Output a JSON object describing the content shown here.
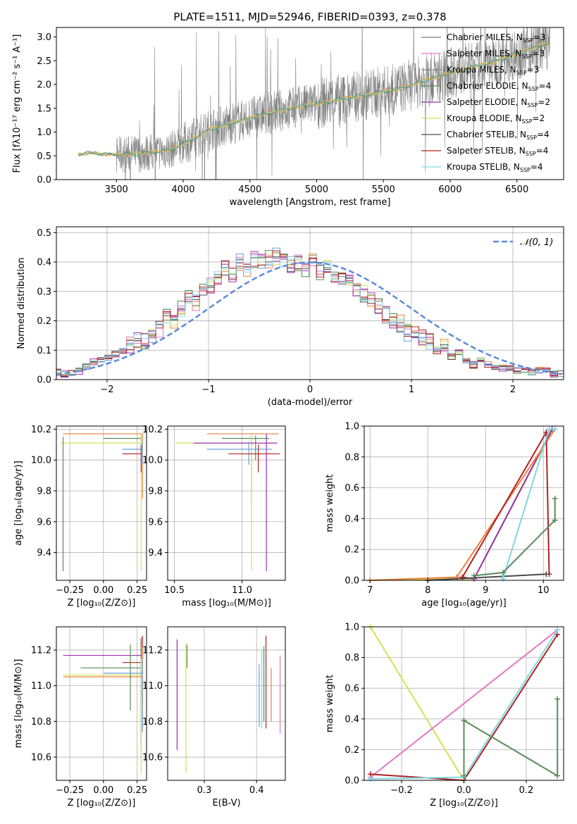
{
  "colors": {
    "c0": "#7a7a7a",
    "c1": "#e377c2",
    "c2": "#8b8b8b",
    "c3": "#5a8a5a",
    "c4": "#9b30b0",
    "c5": "#d4e157",
    "c6": "#4a4a4a",
    "c7": "#b22222",
    "c8": "#80d8e0",
    "orange": "#ef7f3a",
    "blue": "#6f9fd8",
    "dashed": "#5b8bd8"
  },
  "chart_data": [
    {
      "id": "spectrum",
      "type": "line",
      "title": "PLATE=1511, MJD=52946, FIBERID=0393, z=0.378",
      "xlabel": "wavelength [Angstrom, rest frame]",
      "ylabel": "Flux [fλ10⁻¹⁷ erg cm⁻² s⁻¹ A⁻¹]",
      "xlim": [
        3050,
        6850
      ],
      "ylim": [
        0,
        3.2
      ],
      "xticks": [
        "3500",
        "4000",
        "4500",
        "5000",
        "5500",
        "6000",
        "6500"
      ],
      "yticks": [
        "0.0",
        "0.5",
        "1.0",
        "1.5",
        "2.0",
        "2.5",
        "3.0"
      ],
      "legend": [
        {
          "label": "Chabrier MILES, N",
          "sub": "SSP",
          "tail": "=3",
          "color": "c0"
        },
        {
          "label": "Salpeter MILES, N",
          "sub": "SSP",
          "tail": "=3",
          "color": "c1"
        },
        {
          "label": "Kroupa MILES, N",
          "sub": "SSP",
          "tail": "=3",
          "color": "c2"
        },
        {
          "label": "Chabrier ELODIE, N",
          "sub": "SSP",
          "tail": "=4",
          "color": "c3"
        },
        {
          "label": "Salpeter ELODIE, N",
          "sub": "SSP",
          "tail": "=2",
          "color": "c4"
        },
        {
          "label": "Kroupa ELODIE, N",
          "sub": "SSP",
          "tail": "=2",
          "color": "c5"
        },
        {
          "label": "Chabrier STELIB, N",
          "sub": "SSP",
          "tail": "=4",
          "color": "c6"
        },
        {
          "label": "Salpeter STELIB, N",
          "sub": "SSP",
          "tail": "=4",
          "color": "c7"
        },
        {
          "label": "Kroupa STELIB, N",
          "sub": "SSP",
          "tail": "=4",
          "color": "c8"
        }
      ],
      "legend_position": "top-right",
      "continuum": [
        [
          3215,
          0.53
        ],
        [
          3300,
          0.56
        ],
        [
          3500,
          0.52
        ],
        [
          3700,
          0.55
        ],
        [
          3900,
          0.62
        ],
        [
          4000,
          0.75
        ],
        [
          4200,
          1.05
        ],
        [
          4500,
          1.3
        ],
        [
          4800,
          1.5
        ],
        [
          5000,
          1.6
        ],
        [
          5300,
          1.75
        ],
        [
          5600,
          1.9
        ],
        [
          6000,
          2.25
        ],
        [
          6300,
          2.45
        ],
        [
          6600,
          2.75
        ],
        [
          6700,
          2.85
        ]
      ]
    },
    {
      "id": "residuals",
      "type": "histogram",
      "xlabel": "(data-model)/error",
      "ylabel": "Normed distribution",
      "xlim": [
        -2.5,
        2.5
      ],
      "ylim": [
        0,
        0.52
      ],
      "xticks": [
        "−2",
        "−1",
        "0",
        "1",
        "2"
      ],
      "yticks": [
        "0.0",
        "0.1",
        "0.2",
        "0.3",
        "0.4",
        "0.5"
      ],
      "legend": "𝒩(0, 1)",
      "bin_width": 0.1,
      "series_colors": [
        "orange",
        "blue",
        "c5",
        "c3",
        "c6",
        "c4",
        "c1",
        "c7",
        "c8"
      ],
      "values": [
        0.025,
        0.025,
        0.02,
        0.025,
        0.03,
        0.045,
        0.06,
        0.07,
        0.075,
        0.085,
        0.1,
        0.12,
        0.13,
        0.13,
        0.15,
        0.17,
        0.21,
        0.2,
        0.24,
        0.28,
        0.26,
        0.3,
        0.32,
        0.34,
        0.38,
        0.36,
        0.4,
        0.37,
        0.41,
        0.4,
        0.41,
        0.42,
        0.4,
        0.39,
        0.4,
        0.38,
        0.4,
        0.37,
        0.38,
        0.36,
        0.35,
        0.33,
        0.3,
        0.29,
        0.27,
        0.25,
        0.22,
        0.2,
        0.19,
        0.16,
        0.17,
        0.14,
        0.13,
        0.1,
        0.11,
        0.08,
        0.09,
        0.06,
        0.05,
        0.07,
        0.05,
        0.045,
        0.04,
        0.04,
        0.03,
        0.035,
        0.025,
        0.03,
        0.03,
        0.02,
        0.02,
        0.02
      ]
    },
    {
      "id": "age-vs-Z",
      "type": "errorbar",
      "xlabel": "Z [log₁₀(Z/Z⊙)]",
      "ylabel": "age  [log₁₀(age/yr)]",
      "xlim": [
        -0.35,
        0.32
      ],
      "ylim": [
        9.22,
        10.22
      ],
      "xticks": [
        "−0.25",
        "0.00",
        "0.25"
      ],
      "yticks": [
        "9.4",
        "9.6",
        "9.8",
        "10.0",
        "10.2"
      ],
      "points": [
        {
          "x": 0.29,
          "y": 10.17,
          "xl": -0.3,
          "xh": 0.29,
          "yl": 9.75,
          "yh": 10.17,
          "color": "orange"
        },
        {
          "x": 0.28,
          "y": 10.14,
          "xl": 0.0,
          "xh": 0.28,
          "yl": 10.0,
          "yh": 10.16,
          "color": "c3"
        },
        {
          "x": 0.28,
          "y": 10.11,
          "xl": -0.32,
          "xh": 0.28,
          "yl": 9.28,
          "yh": 10.17,
          "color": "c5"
        },
        {
          "x": 0.29,
          "y": 10.07,
          "xl": 0.14,
          "xh": 0.29,
          "yl": 9.97,
          "yh": 10.12,
          "color": "blue"
        },
        {
          "x": 0.28,
          "y": 10.04,
          "xl": 0.14,
          "xh": 0.28,
          "yl": 9.92,
          "yh": 10.1,
          "color": "c7"
        },
        {
          "x": -0.3,
          "y": 10.11,
          "xl": -0.3,
          "xh": -0.3,
          "yl": 9.28,
          "yh": 10.15,
          "color": "c3"
        }
      ]
    },
    {
      "id": "age-vs-mass",
      "type": "errorbar",
      "xlabel": "mass [log₁₀(M/M⊙)]",
      "ylabel": "",
      "xlim": [
        10.45,
        11.32
      ],
      "ylim": [
        9.22,
        10.22
      ],
      "xticks": [
        "10.5",
        "11.0"
      ],
      "yticks": [
        "9.4",
        "9.6",
        "9.8",
        "10.0",
        "10.2"
      ],
      "points": [
        {
          "x": 11.07,
          "y": 10.17,
          "xl": 10.74,
          "xh": 11.27,
          "yl": 9.75,
          "yh": 10.17,
          "color": "orange"
        },
        {
          "x": 11.1,
          "y": 10.14,
          "xl": 10.85,
          "xh": 11.2,
          "yl": 10.0,
          "yh": 10.16,
          "color": "c3"
        },
        {
          "x": 11.07,
          "y": 10.11,
          "xl": 10.51,
          "xh": 11.26,
          "yl": 9.28,
          "yh": 10.17,
          "color": "c5"
        },
        {
          "x": 11.18,
          "y": 10.11,
          "xl": 10.64,
          "xh": 11.26,
          "yl": 9.28,
          "yh": 10.17,
          "color": "c4"
        },
        {
          "x": 11.05,
          "y": 10.07,
          "xl": 10.74,
          "xh": 11.22,
          "yl": 9.97,
          "yh": 10.12,
          "color": "blue"
        },
        {
          "x": 11.12,
          "y": 10.04,
          "xl": 10.9,
          "xh": 11.28,
          "yl": 9.92,
          "yh": 10.1,
          "color": "c7"
        }
      ]
    },
    {
      "id": "weight-vs-age",
      "type": "line",
      "xlabel": "age  [log₁₀(age/yr)]",
      "ylabel": "mass weight",
      "xlim": [
        6.9,
        10.35
      ],
      "ylim": [
        0,
        1.0
      ],
      "xticks": [
        "7",
        "8",
        "9",
        "10"
      ],
      "yticks": [
        "0.0",
        "0.2",
        "0.4",
        "0.6",
        "0.8",
        "1.0"
      ],
      "series": [
        {
          "color": "c5",
          "points": [
            [
              7.0,
              0.0
            ],
            [
              8.8,
              0.01
            ],
            [
              10.15,
              0.97
            ]
          ]
        },
        {
          "color": "c4",
          "points": [
            [
              8.6,
              0.02
            ],
            [
              8.8,
              0.01
            ],
            [
              10.15,
              0.98
            ]
          ]
        },
        {
          "color": "orange",
          "points": [
            [
              7.0,
              0.0
            ],
            [
              8.5,
              0.02
            ],
            [
              10.2,
              0.98
            ]
          ]
        },
        {
          "color": "c7",
          "points": [
            [
              8.6,
              0.02
            ],
            [
              10.05,
              0.96
            ],
            [
              10.1,
              0.04
            ]
          ]
        },
        {
          "color": "c6",
          "points": [
            [
              8.0,
              0.0
            ],
            [
              10.05,
              0.04
            ]
          ]
        },
        {
          "color": "c8",
          "points": [
            [
              9.3,
              0.01
            ],
            [
              10.1,
              0.98
            ],
            [
              10.2,
              0.98
            ]
          ]
        },
        {
          "color": "c3",
          "points": [
            [
              8.8,
              0.03
            ],
            [
              9.3,
              0.05
            ],
            [
              10.2,
              0.39
            ],
            [
              10.2,
              0.53
            ]
          ]
        }
      ]
    },
    {
      "id": "mass-vs-Z",
      "type": "errorbar",
      "xlabel": "Z [log₁₀(Z/Z⊙)]",
      "ylabel": "mass [log₁₀(M/M⊙)]",
      "xlim": [
        -0.35,
        0.32
      ],
      "ylim": [
        10.47,
        11.33
      ],
      "xticks": [
        "−0.25",
        "0.00",
        "0.25"
      ],
      "yticks": [
        "10.6",
        "10.8",
        "11.0",
        "11.2"
      ],
      "points": [
        {
          "x": 0.28,
          "y": 11.17,
          "xl": -0.3,
          "xh": 0.28,
          "yl": 10.64,
          "yh": 11.26,
          "color": "c4"
        },
        {
          "x": 0.29,
          "y": 11.13,
          "xl": 0.14,
          "xh": 0.29,
          "yl": 10.9,
          "yh": 11.28,
          "color": "c7"
        },
        {
          "x": 0.28,
          "y": 11.1,
          "xl": -0.17,
          "xh": 0.28,
          "yl": 10.74,
          "yh": 11.27,
          "color": "c3"
        },
        {
          "x": 0.28,
          "y": 11.06,
          "xl": -0.3,
          "xh": 0.28,
          "yl": 10.51,
          "yh": 11.15,
          "color": "c5"
        },
        {
          "x": 0.29,
          "y": 11.05,
          "xl": -0.3,
          "xh": 0.29,
          "yl": 10.74,
          "yh": 11.22,
          "color": "orange"
        },
        {
          "x": 0.2,
          "y": 11.1,
          "xl": 0.2,
          "xh": 0.2,
          "yl": 10.86,
          "yh": 11.23,
          "color": "c3"
        },
        {
          "x": 0.29,
          "y": 11.07,
          "xl": 0.0,
          "xh": 0.29,
          "yl": 10.74,
          "yh": 11.15,
          "color": "blue"
        }
      ]
    },
    {
      "id": "mass-vs-EBV",
      "type": "errorbar",
      "xlabel": "E(B-V)",
      "ylabel": "",
      "xlim": [
        0.23,
        0.455
      ],
      "ylim": [
        10.47,
        11.33
      ],
      "xticks": [
        "0.3",
        "0.4"
      ],
      "yticks": [
        "10.6",
        "10.8",
        "11.0",
        "11.2"
      ],
      "points": [
        {
          "x": 0.248,
          "y": 10.9,
          "yl": 10.64,
          "yh": 11.26,
          "color": "c4"
        },
        {
          "x": 0.265,
          "y": 10.9,
          "yl": 10.51,
          "yh": 11.24,
          "color": "c5"
        },
        {
          "x": 0.267,
          "y": 11.15,
          "yl": 11.1,
          "yh": 11.23,
          "color": "c3"
        },
        {
          "x": 0.405,
          "y": 10.95,
          "yl": 10.77,
          "yh": 11.12,
          "color": "blue"
        },
        {
          "x": 0.41,
          "y": 11.0,
          "yl": 10.76,
          "yh": 11.2,
          "color": "c8"
        },
        {
          "x": 0.414,
          "y": 11.0,
          "yl": 10.8,
          "yh": 11.22,
          "color": "c3"
        },
        {
          "x": 0.418,
          "y": 11.0,
          "yl": 10.76,
          "yh": 11.28,
          "color": "c7"
        },
        {
          "x": 0.428,
          "y": 10.95,
          "yl": 10.8,
          "yh": 11.1,
          "color": "orange"
        },
        {
          "x": 0.445,
          "y": 10.95,
          "yl": 10.73,
          "yh": 11.17,
          "color": "c1"
        }
      ]
    },
    {
      "id": "weight-vs-Z",
      "type": "line",
      "xlabel": "Z [log₁₀(Z/Z⊙)]",
      "ylabel": "mass weight",
      "xlim": [
        -0.32,
        0.32
      ],
      "ylim": [
        0,
        1.0
      ],
      "xticks": [
        "−0.2",
        "0.0",
        "0.2"
      ],
      "yticks": [
        "0.0",
        "0.2",
        "0.4",
        "0.6",
        "0.8",
        "1.0"
      ],
      "series": [
        {
          "color": "c5",
          "points": [
            [
              -0.3,
              1.0
            ],
            [
              0.0,
              0.0
            ]
          ]
        },
        {
          "color": "c1",
          "points": [
            [
              -0.3,
              0.02
            ],
            [
              0.3,
              0.98
            ]
          ]
        },
        {
          "color": "c7",
          "points": [
            [
              -0.3,
              0.04
            ],
            [
              0.0,
              0.0
            ],
            [
              0.3,
              0.95
            ]
          ]
        },
        {
          "color": "c8",
          "points": [
            [
              -0.3,
              0.01
            ],
            [
              0.0,
              0.02
            ],
            [
              0.3,
              0.98
            ]
          ]
        },
        {
          "color": "c3",
          "points": [
            [
              0.0,
              0.03
            ],
            [
              0.0,
              0.39
            ],
            [
              0.3,
              0.03
            ],
            [
              0.3,
              0.53
            ]
          ]
        }
      ]
    }
  ]
}
